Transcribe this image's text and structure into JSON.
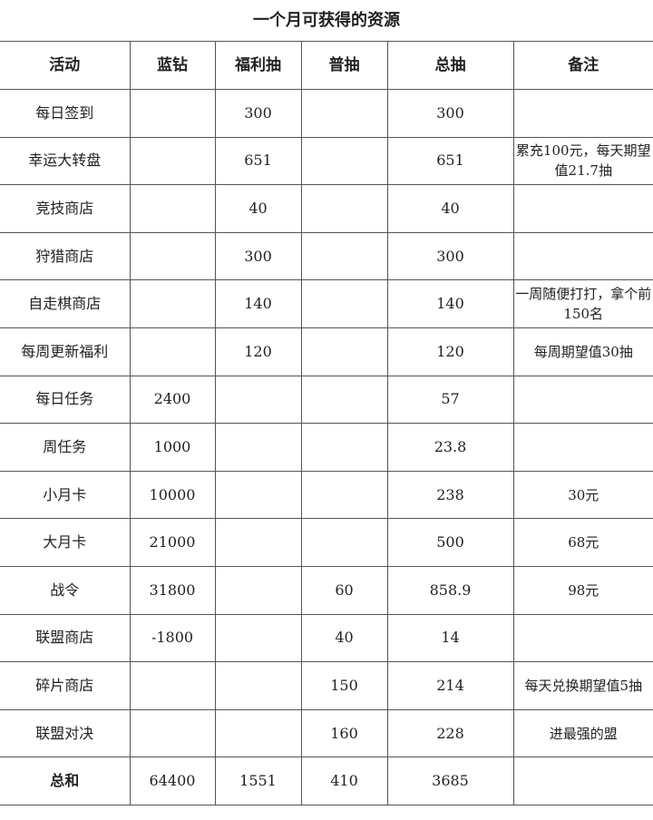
{
  "title": "一个月可获得的资源",
  "columns": [
    "活动",
    "蓝钻",
    "福利抽",
    "普抽",
    "总抽",
    "备注"
  ],
  "rows": [
    [
      "每日签到",
      "",
      "300",
      "",
      "300",
      ""
    ],
    [
      "幸运大转盘",
      "",
      "651",
      "",
      "651",
      "累充100元，每天期望值21.7抽"
    ],
    [
      "竞技商店",
      "",
      "40",
      "",
      "40",
      ""
    ],
    [
      "狩猎商店",
      "",
      "300",
      "",
      "300",
      ""
    ],
    [
      "自走棋商店",
      "",
      "140",
      "",
      "140",
      "一周随便打打，拿个前150名"
    ],
    [
      "每周更新福利",
      "",
      "120",
      "",
      "120",
      "每周期望值30抽"
    ],
    [
      "每日任务",
      "2400",
      "",
      "",
      "57",
      ""
    ],
    [
      "周任务",
      "1000",
      "",
      "",
      "23.8",
      ""
    ],
    [
      "小月卡",
      "10000",
      "",
      "",
      "238",
      "30元"
    ],
    [
      "大月卡",
      "21000",
      "",
      "",
      "500",
      "68元"
    ],
    [
      "战令",
      "31800",
      "",
      "60",
      "858.9",
      "98元"
    ],
    [
      "联盟商店",
      "-1800",
      "",
      "40",
      "14",
      ""
    ],
    [
      "碎片商店",
      "",
      "",
      "150",
      "214",
      "每天兑换期望值5抽"
    ],
    [
      "联盟对决",
      "",
      "",
      "160",
      "228",
      "进最强的盟"
    ]
  ],
  "total": [
    "总和",
    "64400",
    "1551",
    "410",
    "3685",
    ""
  ]
}
